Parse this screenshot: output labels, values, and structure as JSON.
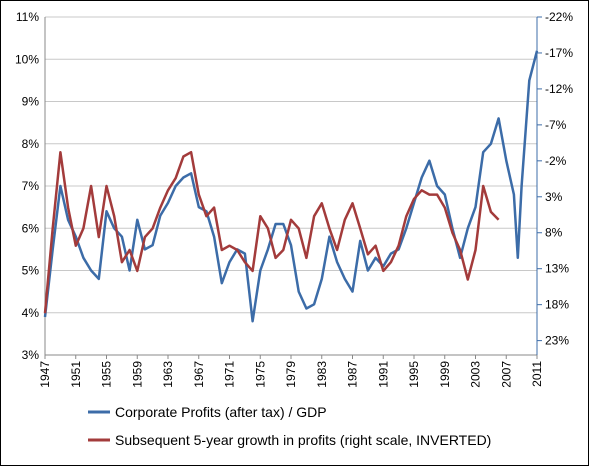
{
  "chart_data": {
    "type": "line",
    "x": [
      1947,
      1948,
      1949,
      1950,
      1951,
      1952,
      1953,
      1954,
      1955,
      1956,
      1957,
      1958,
      1959,
      1960,
      1961,
      1962,
      1963,
      1964,
      1965,
      1966,
      1967,
      1968,
      1969,
      1970,
      1971,
      1972,
      1973,
      1974,
      1975,
      1976,
      1977,
      1978,
      1979,
      1980,
      1981,
      1982,
      1983,
      1984,
      1985,
      1986,
      1987,
      1988,
      1989,
      1990,
      1991,
      1992,
      1993,
      1994,
      1995,
      1996,
      1997,
      1998,
      1999,
      2000,
      2001,
      2002,
      2003,
      2004,
      2005,
      2006,
      2007,
      2008,
      2008.5,
      2009,
      2010,
      2011
    ],
    "series": [
      {
        "name": "Corporate Profits (after tax) / GDP",
        "color": "#3c6ca8",
        "axis": "y",
        "values": [
          3.9,
          5.5,
          7.0,
          6.2,
          5.8,
          5.3,
          5.0,
          4.8,
          6.4,
          6.0,
          5.8,
          5.0,
          6.2,
          5.5,
          5.6,
          6.3,
          6.6,
          7.0,
          7.2,
          7.3,
          6.5,
          6.4,
          5.8,
          4.7,
          5.2,
          5.5,
          5.4,
          3.8,
          5.0,
          5.5,
          6.1,
          6.1,
          5.6,
          4.5,
          4.1,
          4.2,
          4.8,
          5.8,
          5.2,
          4.8,
          4.5,
          5.7,
          5.0,
          5.3,
          5.1,
          5.4,
          5.5,
          6.0,
          6.6,
          7.2,
          7.6,
          7.0,
          6.8,
          6.0,
          5.3,
          6.0,
          6.5,
          7.8,
          8.0,
          8.6,
          7.6,
          6.8,
          5.3,
          7.0,
          9.5,
          10.2
        ]
      },
      {
        "name": "Subsequent 5-year growth in profits (right scale, INVERTED)",
        "color": "#a33b3b",
        "axis": "y2",
        "values": [
          19.2,
          7.4,
          -3.2,
          4.5,
          9.8,
          7.4,
          1.5,
          8.6,
          1.5,
          5.7,
          12.1,
          10.4,
          13.3,
          8.6,
          7.4,
          4.5,
          2.1,
          0.4,
          -2.6,
          -3.2,
          2.7,
          5.7,
          4.5,
          10.4,
          9.8,
          10.4,
          12.1,
          13.3,
          5.7,
          7.4,
          11.5,
          10.4,
          6.2,
          7.4,
          11.5,
          5.7,
          3.9,
          7.4,
          10.4,
          6.2,
          3.9,
          7.4,
          11.0,
          9.8,
          13.3,
          12.1,
          9.8,
          5.7,
          3.3,
          2.1,
          2.7,
          2.7,
          4.5,
          8.0,
          10.4,
          14.5,
          10.4,
          1.5,
          5.1,
          6.2,
          null,
          null,
          null,
          null,
          null,
          null
        ]
      }
    ],
    "xlim": [
      1947,
      2011
    ],
    "xticks": [
      1947,
      1951,
      1955,
      1959,
      1963,
      1967,
      1971,
      1975,
      1979,
      1983,
      1987,
      1991,
      1995,
      1999,
      2003,
      2007,
      2011
    ],
    "ylim": [
      3,
      11
    ],
    "yticks": [
      {
        "value": 3,
        "label": "3%"
      },
      {
        "value": 4,
        "label": "4%"
      },
      {
        "value": 5,
        "label": "5%"
      },
      {
        "value": 6,
        "label": "6%"
      },
      {
        "value": 7,
        "label": "7%"
      },
      {
        "value": 8,
        "label": "8%"
      },
      {
        "value": 9,
        "label": "9%"
      },
      {
        "value": 10,
        "label": "10%"
      },
      {
        "value": 11,
        "label": "11%"
      }
    ],
    "y2lim": [
      -22,
      25
    ],
    "y2_inverted": true,
    "y2ticks": [
      {
        "value": -22,
        "label": "-22%"
      },
      {
        "value": -17,
        "label": "-17%"
      },
      {
        "value": -12,
        "label": "-12%"
      },
      {
        "value": -7,
        "label": "-7%"
      },
      {
        "value": -2,
        "label": "-2%"
      },
      {
        "value": 3,
        "label": "3%"
      },
      {
        "value": 8,
        "label": "8%"
      },
      {
        "value": 13,
        "label": "13%"
      },
      {
        "value": 18,
        "label": "18%"
      },
      {
        "value": 23,
        "label": "23%"
      }
    ],
    "grid": true
  }
}
